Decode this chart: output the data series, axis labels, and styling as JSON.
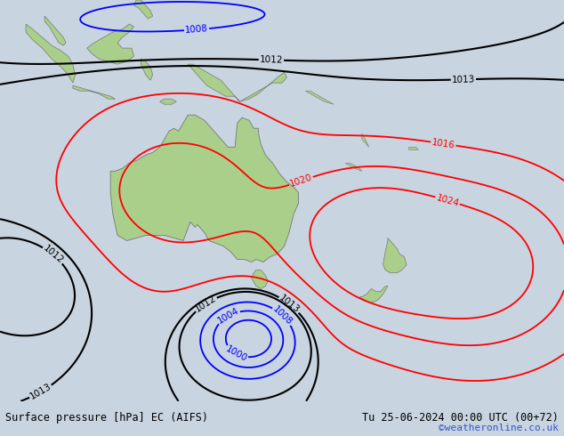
{
  "title_left": "Surface pressure [hPa] EC (AIFS)",
  "title_right": "Tu 25-06-2024 00:00 UTC (00+72)",
  "credit": "©weatheronline.co.uk",
  "bg_color": "#c8d4e0",
  "land_color": "#aacf8a",
  "lon_min": 90,
  "lon_max": 210,
  "lat_min": -65,
  "lat_max": 10
}
